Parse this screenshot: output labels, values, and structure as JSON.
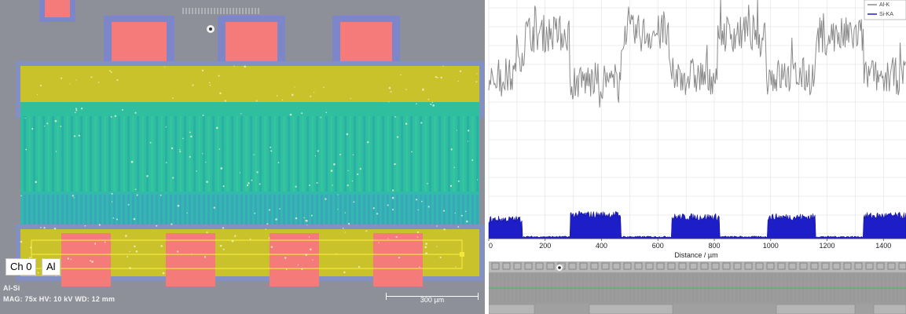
{
  "sem": {
    "channel_label": "Ch 0",
    "element_label": "Al",
    "name": "Al-Si",
    "params": "MAG: 75x   HV: 10 kV   WD: 12 mm",
    "scalebar_text": "300 µm",
    "colors": {
      "background": "#8d8f98",
      "al_pad": "#f57a7a",
      "metal_band": "#c9c22a",
      "finger_region": "#2bc8a8",
      "halo": "#7d86c9"
    }
  },
  "chart_data": {
    "type": "line",
    "xlabel": "Distance / µm",
    "xlim": [
      0,
      1480
    ],
    "xticks": [
      0,
      200,
      400,
      600,
      800,
      1000,
      1200,
      1400
    ],
    "grid": true,
    "legend_position": "top-right",
    "series": [
      {
        "name": "Al-K",
        "color": "#8a8a8a",
        "segments": [
          [
            0,
            90
          ],
          [
            100,
            85
          ],
          [
            110,
            95
          ],
          [
            150,
            0.55
          ],
          [
            270,
            0.2
          ],
          [
            300,
            0.5
          ],
          [
            450,
            0.4
          ],
          [
            490,
            0.8
          ],
          [
            610,
            0.7
          ],
          [
            650,
            0.55
          ],
          [
            800,
            0.5
          ],
          [
            830,
            0.3
          ],
          [
            940,
            0.5
          ],
          [
            970,
            0.8
          ],
          [
            1110,
            0.7
          ],
          [
            1140,
            0.6
          ],
          [
            1300,
            0.5
          ],
          [
            1330,
            0.8
          ]
        ],
        "levels": [
          {
            "x0": 0,
            "x1": 95,
            "y": 0.68
          },
          {
            "x0": 95,
            "x1": 125,
            "y": 0.78
          },
          {
            "x0": 125,
            "x1": 285,
            "y": 0.86
          },
          {
            "x0": 285,
            "x1": 470,
            "y": 0.66
          },
          {
            "x0": 470,
            "x1": 640,
            "y": 0.86
          },
          {
            "x0": 640,
            "x1": 810,
            "y": 0.68
          },
          {
            "x0": 810,
            "x1": 985,
            "y": 0.86
          },
          {
            "x0": 985,
            "x1": 1160,
            "y": 0.68
          },
          {
            "x0": 1160,
            "x1": 1330,
            "y": 0.85
          },
          {
            "x0": 1330,
            "x1": 1480,
            "y": 0.68
          }
        ]
      },
      {
        "name": "Si-KA",
        "color": "#1e1ec8",
        "levels": [
          {
            "x0": 0,
            "x1": 120,
            "y": 0.075
          },
          {
            "x0": 120,
            "x1": 290,
            "y": 0.005
          },
          {
            "x0": 290,
            "x1": 470,
            "y": 0.095
          },
          {
            "x0": 470,
            "x1": 650,
            "y": 0.005
          },
          {
            "x0": 650,
            "x1": 820,
            "y": 0.085
          },
          {
            "x0": 820,
            "x1": 990,
            "y": 0.005
          },
          {
            "x0": 990,
            "x1": 1160,
            "y": 0.085
          },
          {
            "x0": 1160,
            "x1": 1330,
            "y": 0.005
          },
          {
            "x0": 1330,
            "x1": 1480,
            "y": 0.09
          }
        ]
      }
    ]
  },
  "strip": {
    "colors": {
      "background": "#9a9a9a",
      "line": "#3ec04a"
    }
  }
}
